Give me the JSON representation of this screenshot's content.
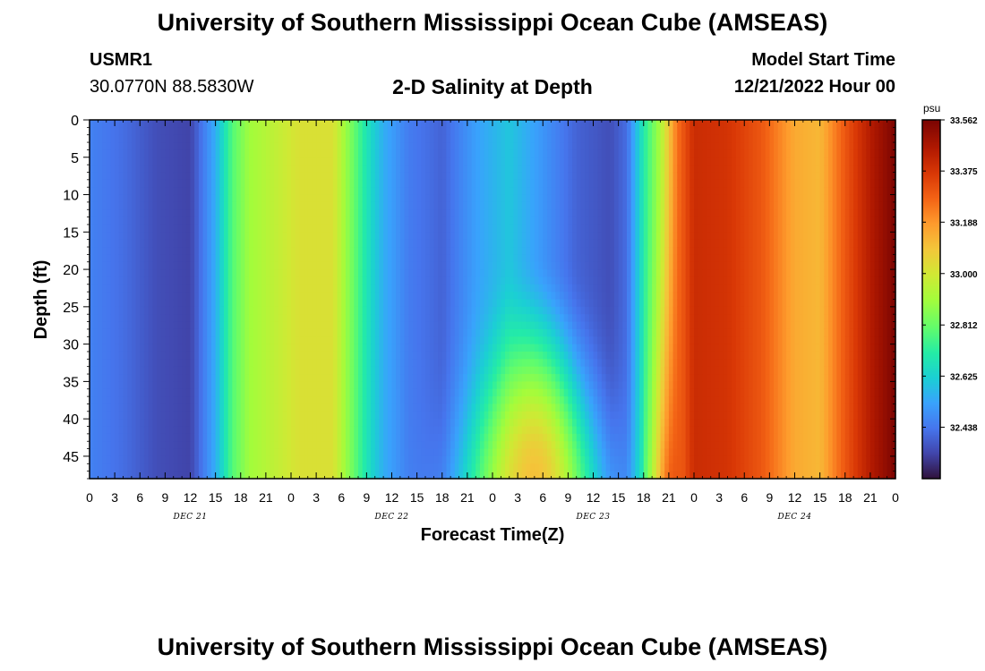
{
  "header": {
    "title": "University of Southern Mississippi Ocean Cube (AMSEAS)",
    "station": "USMR1",
    "coords": "30.0770N  88.5830W",
    "subtitle": "2-D Salinity at Depth",
    "model_start_label": "Model Start Time",
    "model_start_value": "12/21/2022 Hour 00"
  },
  "footer": {
    "title": "University of Southern Mississippi Ocean Cube (AMSEAS)"
  },
  "chart_data": {
    "type": "heatmap",
    "title": "2-D Salinity at Depth",
    "xlabel": "Forecast Time(Z)",
    "ylabel": "Depth (ft)",
    "x_range_hours": [
      0,
      96
    ],
    "y_range_ft": [
      0,
      48
    ],
    "y_inverted": true,
    "x_tick_labels": [
      "0",
      "3",
      "6",
      "9",
      "12",
      "15",
      "18",
      "21",
      "0",
      "3",
      "6",
      "9",
      "12",
      "15",
      "18",
      "21",
      "0",
      "3",
      "6",
      "9",
      "12",
      "15",
      "18",
      "21",
      "0",
      "3",
      "6",
      "9",
      "12",
      "15",
      "18",
      "21",
      "0"
    ],
    "day_labels": [
      {
        "label": "DEC 21",
        "hour": 12
      },
      {
        "label": "DEC 22",
        "hour": 36
      },
      {
        "label": "DEC 23",
        "hour": 60
      },
      {
        "label": "DEC 24",
        "hour": 84
      }
    ],
    "y_ticks": [
      0,
      5,
      10,
      15,
      20,
      25,
      30,
      35,
      40,
      45
    ],
    "colorbar": {
      "unit": "psu",
      "min": 32.25,
      "max": 33.562,
      "tick_labels": [
        "33.562",
        "33.375",
        "33.188",
        "33.000",
        "32.812",
        "32.625",
        "32.438"
      ],
      "tick_values": [
        33.562,
        33.375,
        33.188,
        33.0,
        32.812,
        32.625,
        32.438
      ]
    },
    "surface_salinity_by_hour": [
      {
        "hour": 0,
        "value": 32.46
      },
      {
        "hour": 4,
        "value": 32.42
      },
      {
        "hour": 8,
        "value": 32.36
      },
      {
        "hour": 12,
        "value": 32.34
      },
      {
        "hour": 15,
        "value": 32.55
      },
      {
        "hour": 17,
        "value": 32.78
      },
      {
        "hour": 19,
        "value": 32.9
      },
      {
        "hour": 22,
        "value": 32.96
      },
      {
        "hour": 25,
        "value": 33.02
      },
      {
        "hour": 29,
        "value": 33.02
      },
      {
        "hour": 31,
        "value": 32.85
      },
      {
        "hour": 33,
        "value": 32.68
      },
      {
        "hour": 35,
        "value": 32.55
      },
      {
        "hour": 38,
        "value": 32.45
      },
      {
        "hour": 42,
        "value": 32.4
      },
      {
        "hour": 46,
        "value": 32.52
      },
      {
        "hour": 50,
        "value": 32.6
      },
      {
        "hour": 54,
        "value": 32.5
      },
      {
        "hour": 58,
        "value": 32.4
      },
      {
        "hour": 62,
        "value": 32.36
      },
      {
        "hour": 64,
        "value": 32.42
      },
      {
        "hour": 66,
        "value": 32.7
      },
      {
        "hour": 68,
        "value": 32.92
      },
      {
        "hour": 70,
        "value": 33.25
      },
      {
        "hour": 72,
        "value": 33.4
      },
      {
        "hour": 76,
        "value": 33.38
      },
      {
        "hour": 80,
        "value": 33.3
      },
      {
        "hour": 84,
        "value": 33.15
      },
      {
        "hour": 87,
        "value": 33.12
      },
      {
        "hour": 90,
        "value": 33.3
      },
      {
        "hour": 93,
        "value": 33.45
      },
      {
        "hour": 96,
        "value": 33.56
      }
    ],
    "bottom_plume": {
      "peak_hour": 53,
      "peak_value": 33.1,
      "top_depth_ft": 18
    }
  }
}
